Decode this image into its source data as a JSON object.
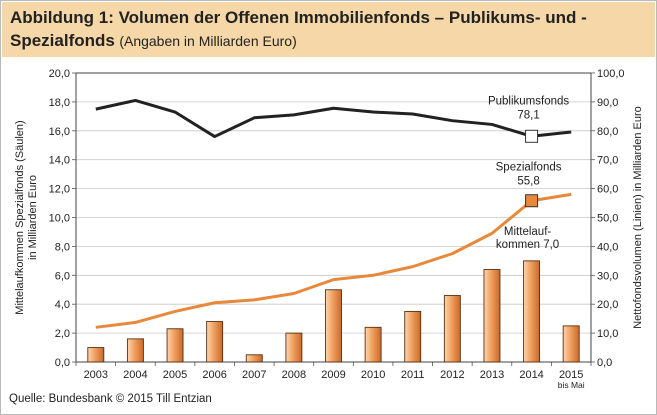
{
  "header": {
    "title_main": "Abbildung 1: Volumen der Offenen Immobilienfonds – Publikums- und -Spezialfonds",
    "title_sub": "(Angaben in Milliarden Euro)"
  },
  "footer": {
    "source": "Quelle: Bundesbank © 2015 Till Entzian"
  },
  "colors": {
    "header_bg": "#f6d7a7",
    "bar_fill": "#f0a060",
    "line_publikum": "#222222",
    "line_spezial": "#e8883a",
    "grid": "#c8c8c8"
  },
  "chart_data": {
    "type": "bar+line",
    "categories": [
      "2003",
      "2004",
      "2005",
      "2006",
      "2007",
      "2008",
      "2009",
      "2010",
      "2011",
      "2012",
      "2013",
      "2014",
      "2015"
    ],
    "category_sublabels": {
      "2015": "bis Mai"
    },
    "bars": {
      "axis": "left",
      "values": [
        1.0,
        1.6,
        2.3,
        2.8,
        0.5,
        2.0,
        5.0,
        2.4,
        3.5,
        4.6,
        6.4,
        7.0,
        2.5
      ]
    },
    "series": [
      {
        "name": "Publikumsfonds",
        "axis": "right",
        "color": "#222222",
        "values": [
          87.5,
          90.5,
          86.5,
          78.0,
          84.5,
          85.5,
          87.8,
          86.5,
          85.8,
          83.5,
          82.2,
          78.1,
          79.6
        ],
        "marker_index": 11,
        "marker_fill": "#ffffff"
      },
      {
        "name": "Spezialfonds",
        "axis": "right",
        "color": "#e8883a",
        "values": [
          12.0,
          13.7,
          17.5,
          20.5,
          21.5,
          23.7,
          28.5,
          30.0,
          33.0,
          37.5,
          44.5,
          55.8,
          58.0
        ],
        "marker_index": 11,
        "marker_fill": "#e8883a"
      }
    ],
    "annotations": [
      {
        "lines": [
          "Publikumsfonds",
          "78,1"
        ],
        "target_series": 0
      },
      {
        "lines": [
          "Spezialfonds",
          "55,8"
        ],
        "target_series": 1
      },
      {
        "lines": [
          "Mittelauf-",
          "kommen 7,0"
        ],
        "target_bar": 11
      }
    ],
    "y_left": {
      "label": [
        "Mittelaufkommen Spezialfonds (Säulen)",
        "in Milliarden Euro"
      ],
      "ylim": [
        0,
        20
      ],
      "ticks": [
        "0,0",
        "2,0",
        "4,0",
        "6,0",
        "8,0",
        "10,0",
        "12,0",
        "14,0",
        "16,0",
        "18,0",
        "20,0"
      ]
    },
    "y_right": {
      "label": [
        "Nettofondsvolumen (Linien) in Milliarden Euro"
      ],
      "ylim": [
        0,
        100
      ],
      "ticks": [
        "0,0",
        "10,0",
        "20,0",
        "30,0",
        "40,0",
        "50,0",
        "60,0",
        "70,0",
        "80,0",
        "90,0",
        "100,0"
      ]
    },
    "grid": true
  }
}
